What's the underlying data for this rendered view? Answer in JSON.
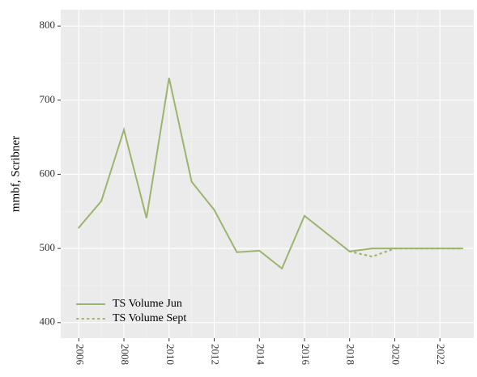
{
  "chart_data": {
    "type": "line",
    "y_label": "mmbf, Scribner",
    "series": [
      {
        "name": "TS Volume Jun",
        "color": "#9cb56e",
        "dash": "solid",
        "x": [
          2006,
          2007,
          2008,
          2009,
          2010,
          2011,
          2012,
          2013,
          2014,
          2015,
          2016,
          2018,
          2019,
          2020,
          2021,
          2022,
          2023
        ],
        "values": [
          528,
          564,
          660,
          541,
          730,
          590,
          552,
          495,
          497,
          473,
          544,
          496,
          500,
          500,
          500,
          500,
          500
        ]
      },
      {
        "name": "TS Volume Sept",
        "color": "#9cb56e",
        "dash": "dotted",
        "x": [
          2018,
          2019,
          2020,
          2021,
          2022,
          2023
        ],
        "values": [
          496,
          489,
          500,
          500,
          500,
          500
        ]
      }
    ],
    "xlim": [
      2005.2,
      2023.5
    ],
    "xticks": [
      2006,
      2008,
      2010,
      2012,
      2014,
      2016,
      2018,
      2020,
      2022
    ],
    "ylim": [
      379,
      822
    ],
    "yticks": [
      400,
      500,
      600,
      700,
      800
    ],
    "grid": true,
    "legend": "bottom-left"
  }
}
